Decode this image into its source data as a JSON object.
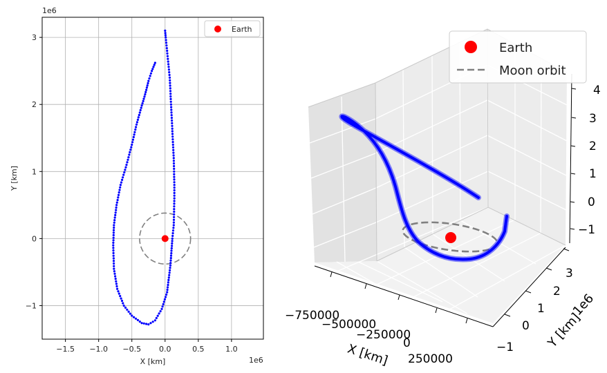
{
  "chart_data": [
    {
      "type": "scatter",
      "projection": "2d",
      "xlabel": "X [km]",
      "ylabel": "Y [km]",
      "x_offset_label": "1e6",
      "y_offset_label": "1e6",
      "xlim": [
        -1.85,
        1.48
      ],
      "ylim": [
        -1.5,
        3.3
      ],
      "x_ticks": [
        -1.5,
        -1.0,
        -0.5,
        0.0,
        0.5,
        1.0
      ],
      "x_tick_labels": [
        "−1.5",
        "−1.0",
        "−0.5",
        "0.0",
        "0.5",
        "1.0"
      ],
      "y_ticks": [
        -1,
        0,
        1,
        2,
        3
      ],
      "y_tick_labels": [
        "−1",
        "0",
        "1",
        "2",
        "3"
      ],
      "grid": true,
      "legend_position": "top-right",
      "series": [
        {
          "name": "",
          "color": "#0000ff",
          "marker": "point",
          "x": [
            0.0,
            0.01,
            0.03,
            0.05,
            0.07,
            0.08,
            0.09,
            0.1,
            0.11,
            0.12,
            0.13,
            0.135,
            0.14,
            0.14,
            0.135,
            0.13,
            0.11,
            0.08,
            0.03,
            -0.05,
            -0.15,
            -0.25,
            -0.35,
            -0.5,
            -0.62,
            -0.72,
            -0.77,
            -0.78,
            -0.77,
            -0.73,
            -0.67,
            -0.58,
            -0.5,
            -0.43,
            -0.36,
            -0.3,
            -0.25,
            -0.2,
            -0.15
          ],
          "y": [
            3.1,
            3.0,
            2.8,
            2.6,
            2.4,
            2.2,
            2.0,
            1.8,
            1.6,
            1.4,
            1.2,
            1.0,
            0.8,
            0.6,
            0.4,
            0.2,
            0.0,
            -0.4,
            -0.8,
            -1.05,
            -1.22,
            -1.28,
            -1.26,
            -1.15,
            -1.0,
            -0.75,
            -0.45,
            -0.1,
            0.2,
            0.5,
            0.8,
            1.1,
            1.4,
            1.7,
            1.95,
            2.15,
            2.35,
            2.5,
            2.62
          ]
        },
        {
          "name": "Earth",
          "color": "#ff0000",
          "marker": "circle",
          "x": [
            0.0
          ],
          "y": [
            0.0
          ]
        }
      ],
      "moon_orbit": {
        "radius": 0.384,
        "color": "#808080",
        "linestyle": "dashed"
      }
    },
    {
      "type": "line",
      "projection": "3d",
      "xlabel": "X [km]",
      "ylabel": "Y [km]",
      "y_offset_label": "1e6",
      "x_tick_labels": [
        "−750000",
        "−500000",
        "−250000",
        "0",
        "250000"
      ],
      "y_tick_labels": [
        "−1",
        "0",
        "1",
        "2",
        "3"
      ],
      "z_tick_labels": [
        "4",
        "3",
        "2",
        "1",
        "0",
        "−1"
      ],
      "grid": true,
      "legend_position": "top-right",
      "series": [
        {
          "name": "Earth",
          "color": "#ff0000",
          "marker": "circle"
        },
        {
          "name": "Moon orbit",
          "color": "#808080",
          "linestyle": "dashed"
        },
        {
          "name": "",
          "color": "#0000ff",
          "linestyle": "solid"
        }
      ]
    }
  ]
}
